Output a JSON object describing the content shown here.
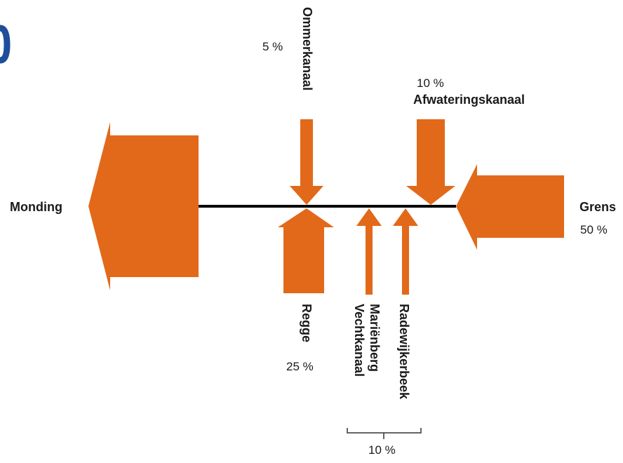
{
  "labels": {
    "monding": "Monding",
    "grens": "Grens",
    "grens_pct": "50 %",
    "ommerkanaal": "Ommerkanaal",
    "ommerkanaal_pct": "5 %",
    "afwateringskanaal": "Afwateringskanaal",
    "afwateringskanaal_pct": "10 %",
    "regge": "Regge",
    "regge_pct": "25 %",
    "marienberg": "Mariënberg",
    "vechtkanaal": "Vechtkanaal",
    "radewijkerbeek": "Radewijkerbeek",
    "group_pct": "10 %"
  },
  "colors": {
    "arrow": "#e2691a",
    "line": "#000000",
    "accent": "#1f4e9a"
  }
}
